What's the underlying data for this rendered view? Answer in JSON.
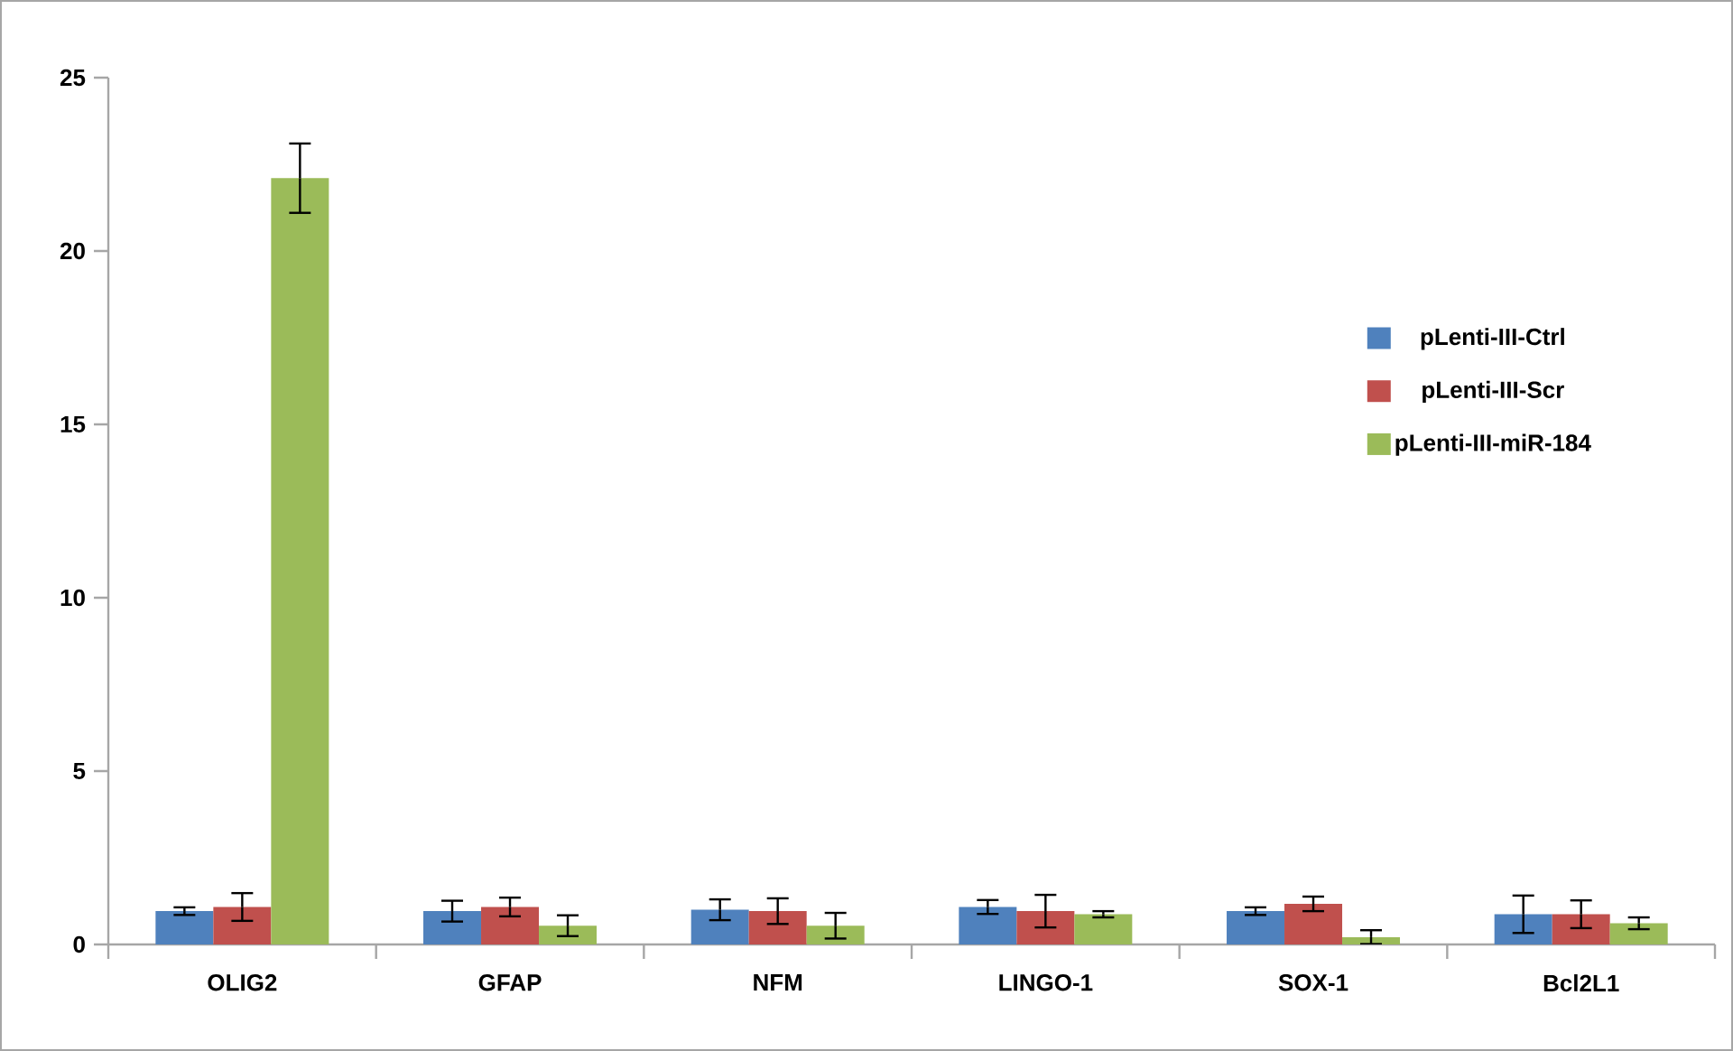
{
  "chart_data": {
    "type": "bar",
    "categories": [
      "OLIG2",
      "GFAP",
      "NFM",
      "LINGO-1",
      "SOX-1",
      "Bcl2L1"
    ],
    "series": [
      {
        "name": "pLenti-III-Ctrl",
        "color": "#4f81bd",
        "values": [
          0.96,
          0.96,
          1.0,
          1.08,
          0.96,
          0.87
        ],
        "errors": [
          0.11,
          0.3,
          0.3,
          0.2,
          0.11,
          0.54
        ]
      },
      {
        "name": "pLenti-III-Scr",
        "color": "#c0504d",
        "values": [
          1.08,
          1.08,
          0.96,
          0.96,
          1.17,
          0.87
        ],
        "errors": [
          0.4,
          0.27,
          0.37,
          0.47,
          0.21,
          0.4
        ]
      },
      {
        "name": "pLenti-III-miR-184",
        "color": "#9bbb59",
        "values": [
          22.1,
          0.54,
          0.54,
          0.87,
          0.21,
          0.61
        ],
        "errors": [
          1.0,
          0.3,
          0.37,
          0.09,
          0.2,
          0.17
        ]
      }
    ],
    "ylim": [
      0,
      25
    ],
    "yticks": [
      0,
      5,
      10,
      15,
      20,
      25
    ],
    "grid": false,
    "legend": "right"
  }
}
